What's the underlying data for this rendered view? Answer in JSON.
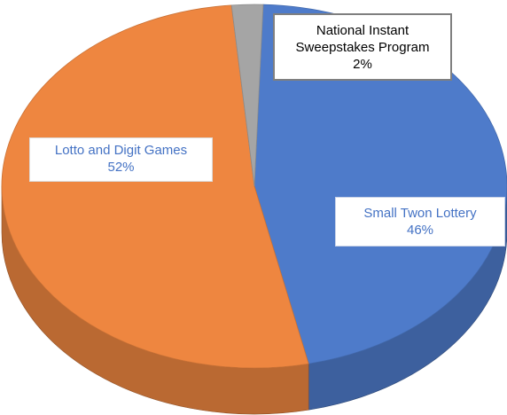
{
  "chart_data": {
    "type": "pie",
    "categories": [
      "Small Twon Lottery",
      "Lotto and Digit Games",
      "National Instant Sweepstakes Program"
    ],
    "values": [
      46,
      52,
      2
    ],
    "value_labels": [
      "46%",
      "52%",
      "2%"
    ],
    "colors": [
      "#4e7bca",
      "#ee8640",
      "#a5a5a5"
    ]
  }
}
